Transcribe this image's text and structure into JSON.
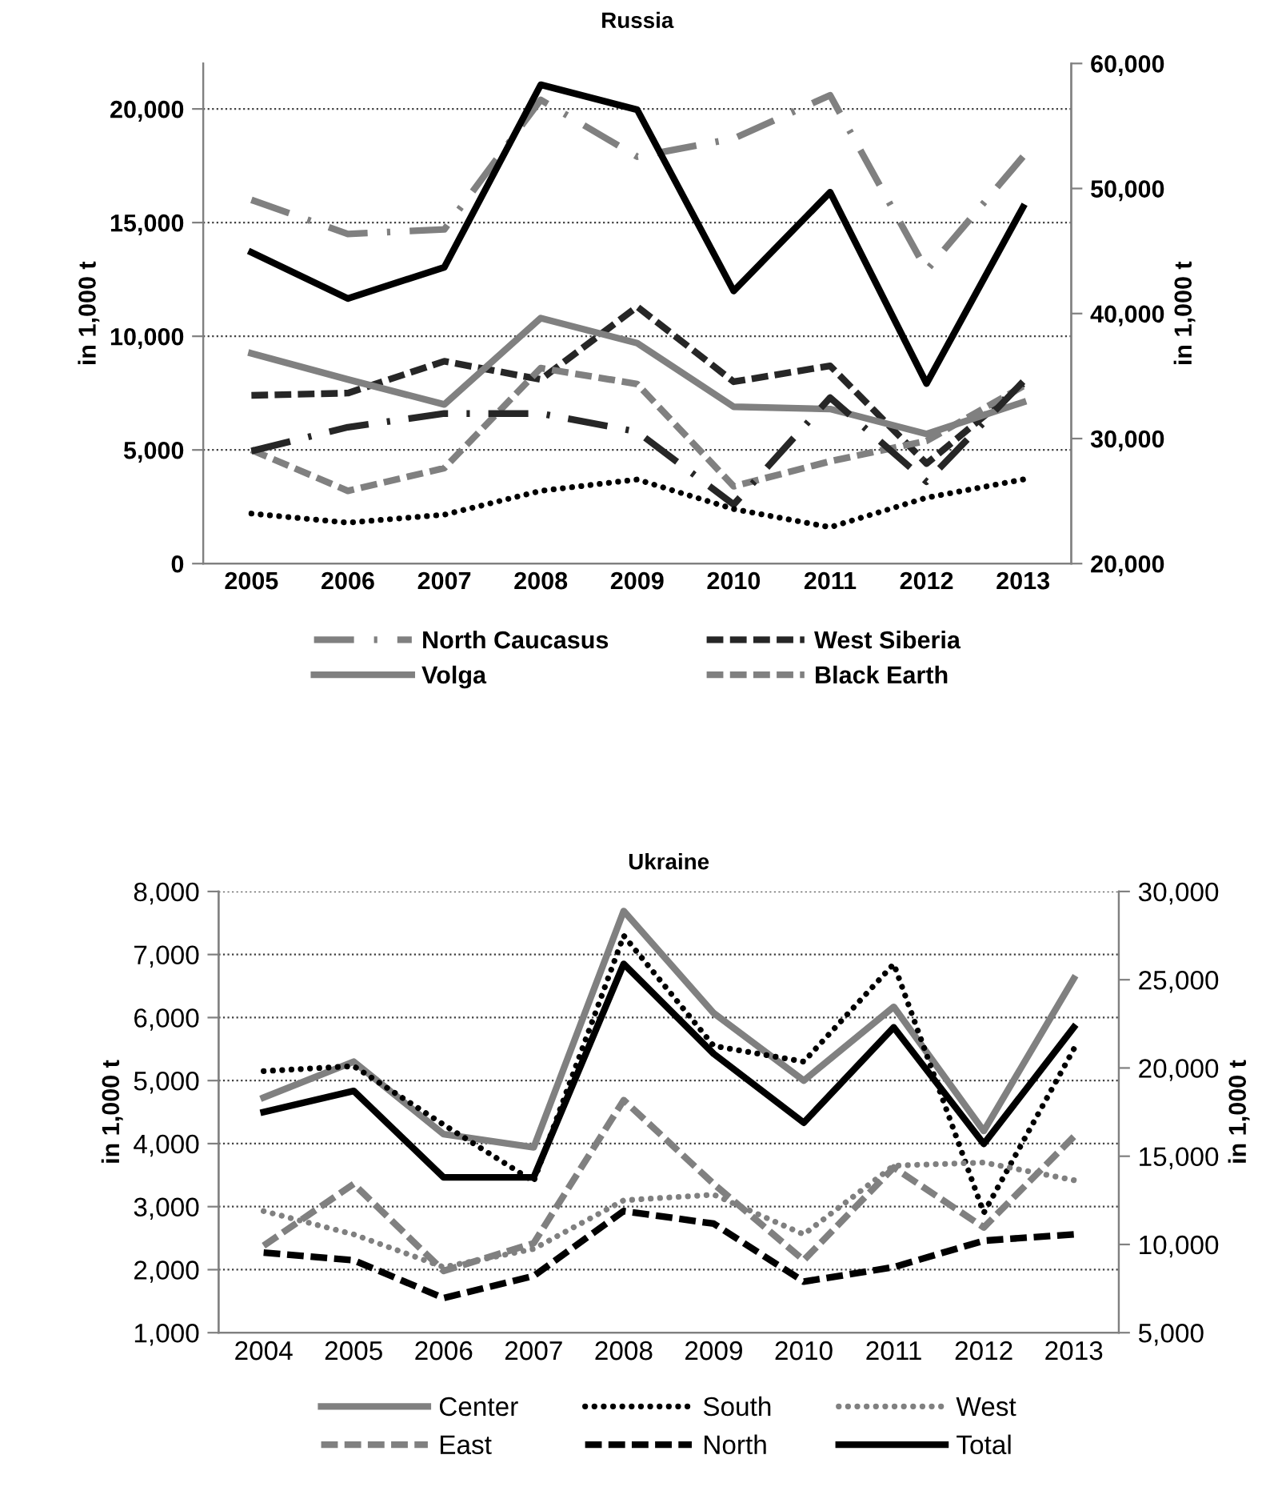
{
  "chart_data": [
    {
      "type": "line",
      "title": "Russia",
      "ylabel": "in 1,000 t",
      "y2label": "in 1,000 t",
      "categories": [
        "2005",
        "2006",
        "2007",
        "2008",
        "2009",
        "2010",
        "2011",
        "2012",
        "2013"
      ],
      "ylim": [
        0,
        22000
      ],
      "yticks": [
        {
          "value": 0,
          "label": "0"
        },
        {
          "value": 5000,
          "label": "5,000"
        },
        {
          "value": 10000,
          "label": "10,000"
        },
        {
          "value": 15000,
          "label": "15,000"
        },
        {
          "value": 20000,
          "label": "20,000"
        }
      ],
      "y2lim": [
        20000,
        60000
      ],
      "y2ticks": [
        {
          "value": 20000,
          "label": "20,000"
        },
        {
          "value": 30000,
          "label": "30,000"
        },
        {
          "value": 40000,
          "label": "40,000"
        },
        {
          "value": 50000,
          "label": "50,000"
        },
        {
          "value": 60000,
          "label": "60,000"
        }
      ],
      "grid": "y",
      "legend": "bottom",
      "marker": "none",
      "series": [
        {
          "name": "North Caucasus",
          "color": "#808080",
          "line_style": "dashdot",
          "values": [
            16000,
            14500,
            14700,
            20400,
            17900,
            18700,
            20600,
            12900,
            17900
          ]
        },
        {
          "name": "West Siberia",
          "color": "#262626",
          "line_style": "dashed",
          "values": [
            7400,
            7500,
            8900,
            8100,
            11300,
            8000,
            8700,
            4400,
            7900
          ]
        },
        {
          "name": "Volga",
          "color": "#808080",
          "line_style": "solid",
          "values": [
            9250,
            8100,
            7000,
            10800,
            9700,
            6900,
            6800,
            5700,
            7100
          ]
        },
        {
          "name": "Black Earth",
          "color": "#808080",
          "line_style": "dashed",
          "values": [
            5000,
            3200,
            4200,
            8600,
            7900,
            3400,
            4500,
            5400,
            7800
          ]
        },
        {
          "color": "#262626",
          "line_style": "dashdot",
          "values": [
            4950,
            6000,
            6600,
            6600,
            5800,
            2600,
            7300,
            3600,
            8000
          ]
        },
        {
          "color": "#000000",
          "line_style": "dotted",
          "values": [
            2200,
            1800,
            2150,
            3200,
            3700,
            2400,
            1600,
            2900,
            3700
          ]
        },
        {
          "color": "#000000",
          "line_style": "solid",
          "axis": "y2",
          "values": [
            44900,
            41200,
            43700,
            58300,
            56300,
            41800,
            49700,
            34400,
            48500
          ]
        }
      ]
    },
    {
      "type": "line",
      "title": "Ukraine",
      "ylabel": "in 1,000 t",
      "y2label": "in 1,000 t",
      "categories": [
        "2004",
        "2005",
        "2006",
        "2007",
        "2008",
        "2009",
        "2010",
        "2011",
        "2012",
        "2013"
      ],
      "ylim": [
        1000,
        8000
      ],
      "yticks": [
        {
          "value": 1000,
          "label": "1,000"
        },
        {
          "value": 2000,
          "label": "2,000"
        },
        {
          "value": 3000,
          "label": "3,000"
        },
        {
          "value": 4000,
          "label": "4,000"
        },
        {
          "value": 5000,
          "label": "5,000"
        },
        {
          "value": 6000,
          "label": "6,000"
        },
        {
          "value": 7000,
          "label": "7,000"
        },
        {
          "value": 8000,
          "label": "8,000"
        }
      ],
      "y2lim": [
        5000,
        30000
      ],
      "y2ticks": [
        {
          "value": 5000,
          "label": "5,000"
        },
        {
          "value": 10000,
          "label": "10,000"
        },
        {
          "value": 15000,
          "label": "15,000"
        },
        {
          "value": 20000,
          "label": "20,000"
        },
        {
          "value": 25000,
          "label": "25,000"
        },
        {
          "value": 30000,
          "label": "30,000"
        }
      ],
      "grid": "y",
      "legend": "bottom",
      "marker": "none",
      "series": [
        {
          "name": "Center",
          "color": "#808080",
          "line_style": "solid",
          "values": [
            4730,
            5300,
            4150,
            3940,
            7690,
            6070,
            5000,
            6170,
            4200,
            6620
          ]
        },
        {
          "name": "South",
          "color": "#000000",
          "line_style": "dotted",
          "values": [
            5150,
            5230,
            4300,
            3400,
            7300,
            5550,
            5300,
            6850,
            2900,
            5500
          ]
        },
        {
          "name": "West",
          "color": "#808080",
          "line_style": "dotted",
          "values": [
            2930,
            2560,
            2040,
            2330,
            3100,
            3190,
            2560,
            3650,
            3700,
            3420
          ]
        },
        {
          "name": "East",
          "color": "#808080",
          "line_style": "dashed",
          "values": [
            2380,
            3360,
            1980,
            2420,
            4690,
            3360,
            2150,
            3620,
            2670,
            4110
          ]
        },
        {
          "name": "North",
          "color": "#000000",
          "line_style": "dashed",
          "values": [
            2270,
            2150,
            1550,
            1900,
            2930,
            2730,
            1810,
            2040,
            2460,
            2560
          ]
        },
        {
          "name": "Total",
          "color": "#000000",
          "line_style": "solid",
          "axis": "y2",
          "values": [
            17500,
            18700,
            13800,
            13800,
            25900,
            20800,
            16900,
            22300,
            15700,
            22300
          ]
        }
      ]
    }
  ]
}
